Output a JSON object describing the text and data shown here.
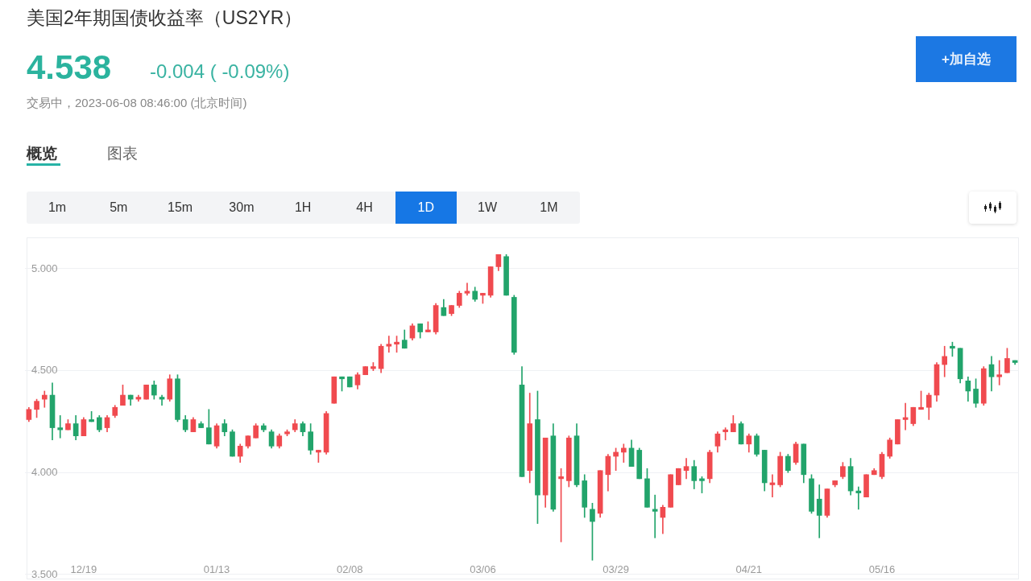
{
  "chart_data": {
    "type": "candlestick",
    "title": "美国2年期国债收益率（US2YR）",
    "subtitle": "交易中，2023-06-08 08:46:00 (北京时间)",
    "annotations": [
      "4.538",
      "-0.004 ( -0.09%)",
      "概览",
      "图表",
      "1m",
      "5m",
      "15m",
      "30m",
      "1H",
      "4H",
      "1D",
      "1W",
      "1M",
      "+加自选"
    ],
    "categories": [
      null,
      null,
      null,
      null,
      null,
      null,
      null,
      "12/19",
      null,
      null,
      null,
      null,
      null,
      null,
      null,
      null,
      null,
      null,
      null,
      null,
      null,
      null,
      null,
      null,
      "01/13",
      null,
      null,
      null,
      null,
      null,
      null,
      null,
      null,
      null,
      null,
      null,
      null,
      null,
      null,
      null,
      null,
      "02/08",
      null,
      null,
      null,
      null,
      null,
      null,
      null,
      null,
      null,
      null,
      null,
      null,
      null,
      null,
      null,
      null,
      "03/06",
      null,
      null,
      null,
      null,
      null,
      null,
      null,
      null,
      null,
      null,
      null,
      null,
      null,
      null,
      null,
      null,
      "03/29",
      null,
      null,
      null,
      null,
      null,
      null,
      null,
      null,
      null,
      null,
      null,
      null,
      null,
      null,
      null,
      null,
      "04/21",
      null,
      null,
      null,
      null,
      null,
      null,
      null,
      null,
      null,
      null,
      null,
      null,
      null,
      null,
      null,
      null,
      "05/16",
      null,
      null,
      null,
      null,
      null,
      null,
      null,
      null,
      null,
      null,
      null,
      null,
      null,
      null,
      null,
      null,
      null
    ],
    "ohlc": [
      [
        4.26,
        4.32,
        4.25,
        4.31
      ],
      [
        4.31,
        4.36,
        4.27,
        4.35
      ],
      [
        4.36,
        4.4,
        4.32,
        4.38
      ],
      [
        4.38,
        4.44,
        4.16,
        4.22
      ],
      [
        4.22,
        4.28,
        4.17,
        4.21
      ],
      [
        4.21,
        4.26,
        4.21,
        4.24
      ],
      [
        4.24,
        4.28,
        4.16,
        4.18
      ],
      [
        4.18,
        4.27,
        4.18,
        4.26
      ],
      [
        4.26,
        4.3,
        4.25,
        4.25
      ],
      [
        4.27,
        4.28,
        4.2,
        4.21
      ],
      [
        4.22,
        4.28,
        4.2,
        4.27
      ],
      [
        4.28,
        4.33,
        4.27,
        4.32
      ],
      [
        4.33,
        4.43,
        4.33,
        4.38
      ],
      [
        4.38,
        4.38,
        4.33,
        4.36
      ],
      [
        4.36,
        4.38,
        4.35,
        4.37
      ],
      [
        4.36,
        4.43,
        4.36,
        4.43
      ],
      [
        4.43,
        4.45,
        4.36,
        4.38
      ],
      [
        4.37,
        4.38,
        4.33,
        4.36
      ],
      [
        4.36,
        4.48,
        4.35,
        4.46
      ],
      [
        4.46,
        4.48,
        4.25,
        4.26
      ],
      [
        4.26,
        4.28,
        4.2,
        4.21
      ],
      [
        4.2,
        4.27,
        4.2,
        4.26
      ],
      [
        4.24,
        4.25,
        4.22,
        4.22
      ],
      [
        4.22,
        4.31,
        4.14,
        4.14
      ],
      [
        4.13,
        4.24,
        4.12,
        4.23
      ],
      [
        4.24,
        4.26,
        4.18,
        4.2
      ],
      [
        4.2,
        4.21,
        4.08,
        4.08
      ],
      [
        4.08,
        4.14,
        4.05,
        4.13
      ],
      [
        4.13,
        4.18,
        4.12,
        4.18
      ],
      [
        4.17,
        4.24,
        4.17,
        4.23
      ],
      [
        4.23,
        4.24,
        4.2,
        4.21
      ],
      [
        4.2,
        4.21,
        4.12,
        4.13
      ],
      [
        4.13,
        4.19,
        4.12,
        4.18
      ],
      [
        4.19,
        4.21,
        4.18,
        4.2
      ],
      [
        4.21,
        4.26,
        4.2,
        4.24
      ],
      [
        4.24,
        4.25,
        4.18,
        4.2
      ],
      [
        4.2,
        4.24,
        4.09,
        4.11
      ],
      [
        4.1,
        4.11,
        4.05,
        4.11
      ],
      [
        4.1,
        4.3,
        4.09,
        4.29
      ],
      [
        4.34,
        4.47,
        4.34,
        4.47
      ],
      [
        4.47,
        4.47,
        4.4,
        4.46
      ],
      [
        4.47,
        4.47,
        4.42,
        4.42
      ],
      [
        4.43,
        4.49,
        4.41,
        4.48
      ],
      [
        4.48,
        4.52,
        4.48,
        4.52
      ],
      [
        4.51,
        4.54,
        4.5,
        4.52
      ],
      [
        4.51,
        4.63,
        4.49,
        4.62
      ],
      [
        4.62,
        4.67,
        4.59,
        4.63
      ],
      [
        4.63,
        4.67,
        4.59,
        4.64
      ],
      [
        4.65,
        4.7,
        4.61,
        4.61
      ],
      [
        4.66,
        4.73,
        4.65,
        4.72
      ],
      [
        4.73,
        4.73,
        4.66,
        4.69
      ],
      [
        4.69,
        4.74,
        4.69,
        4.7
      ],
      [
        4.69,
        4.83,
        4.68,
        4.82
      ],
      [
        4.81,
        4.85,
        4.77,
        4.77
      ],
      [
        4.78,
        4.82,
        4.77,
        4.82
      ],
      [
        4.82,
        4.89,
        4.81,
        4.88
      ],
      [
        4.88,
        4.93,
        4.87,
        4.89
      ],
      [
        4.89,
        4.91,
        4.84,
        4.85
      ],
      [
        4.87,
        4.88,
        4.83,
        4.88
      ],
      [
        4.87,
        5.01,
        4.86,
        5.01
      ],
      [
        5.01,
        5.07,
        4.99,
        5.07
      ],
      [
        5.06,
        5.07,
        4.87,
        4.87
      ],
      [
        4.86,
        4.87,
        4.58,
        4.59
      ],
      [
        4.43,
        4.52,
        3.98,
        3.98
      ],
      [
        4.01,
        4.39,
        3.95,
        4.24
      ],
      [
        4.26,
        4.4,
        3.75,
        3.89
      ],
      [
        3.89,
        4.17,
        3.83,
        4.17
      ],
      [
        4.18,
        4.24,
        3.81,
        3.82
      ],
      [
        3.97,
        4.02,
        3.66,
        3.98
      ],
      [
        3.96,
        4.18,
        3.93,
        4.17
      ],
      [
        4.18,
        4.24,
        3.93,
        3.94
      ],
      [
        3.96,
        3.99,
        3.78,
        3.83
      ],
      [
        3.82,
        3.85,
        3.57,
        3.76
      ],
      [
        3.8,
        4.01,
        3.78,
        4.01
      ],
      [
        3.99,
        4.09,
        3.91,
        4.08
      ],
      [
        4.08,
        4.12,
        4.01,
        4.1
      ],
      [
        4.1,
        4.14,
        4.05,
        4.12
      ],
      [
        4.12,
        4.16,
        4.03,
        4.03
      ],
      [
        4.11,
        4.12,
        3.97,
        3.97
      ],
      [
        3.97,
        4.02,
        3.83,
        3.83
      ],
      [
        3.82,
        3.89,
        3.68,
        3.81
      ],
      [
        3.78,
        3.84,
        3.7,
        3.83
      ],
      [
        3.83,
        3.99,
        3.83,
        3.99
      ],
      [
        3.94,
        4.02,
        3.94,
        4.02
      ],
      [
        4.01,
        4.07,
        3.97,
        4.03
      ],
      [
        4.03,
        4.06,
        3.92,
        3.96
      ],
      [
        3.97,
        3.98,
        3.9,
        3.96
      ],
      [
        3.97,
        4.11,
        3.95,
        4.1
      ],
      [
        4.13,
        4.2,
        4.1,
        4.19
      ],
      [
        4.2,
        4.22,
        4.16,
        4.21
      ],
      [
        4.2,
        4.28,
        4.2,
        4.24
      ],
      [
        4.24,
        4.25,
        4.14,
        4.14
      ],
      [
        4.14,
        4.19,
        4.1,
        4.18
      ],
      [
        4.18,
        4.19,
        4.08,
        4.09
      ],
      [
        4.11,
        4.11,
        3.91,
        3.95
      ],
      [
        3.94,
        3.99,
        3.88,
        3.95
      ],
      [
        3.94,
        4.1,
        3.93,
        4.08
      ],
      [
        4.08,
        4.09,
        4.0,
        4.01
      ],
      [
        4.05,
        4.15,
        4.04,
        4.14
      ],
      [
        4.14,
        4.14,
        3.95,
        3.99
      ],
      [
        3.97,
        3.99,
        3.8,
        3.81
      ],
      [
        3.87,
        3.94,
        3.68,
        3.79
      ],
      [
        3.79,
        3.92,
        3.78,
        3.92
      ],
      [
        3.94,
        3.96,
        3.93,
        3.96
      ],
      [
        3.98,
        4.05,
        3.97,
        4.03
      ],
      [
        4.03,
        4.07,
        3.89,
        3.91
      ],
      [
        3.91,
        3.93,
        3.82,
        3.9
      ],
      [
        3.88,
        3.99,
        3.88,
        3.99
      ],
      [
        3.99,
        4.02,
        3.99,
        4.01
      ],
      [
        3.98,
        4.1,
        3.97,
        4.09
      ],
      [
        4.08,
        4.17,
        4.07,
        4.16
      ],
      [
        4.14,
        4.26,
        4.14,
        4.26
      ],
      [
        4.26,
        4.34,
        4.21,
        4.27
      ],
      [
        4.24,
        4.32,
        4.23,
        4.32
      ],
      [
        4.31,
        4.4,
        4.31,
        4.32
      ],
      [
        4.32,
        4.39,
        4.26,
        4.38
      ],
      [
        4.38,
        4.54,
        4.35,
        4.53
      ],
      [
        4.53,
        4.62,
        4.47,
        4.57
      ],
      [
        4.62,
        4.64,
        4.57,
        4.61
      ],
      [
        4.61,
        4.61,
        4.44,
        4.46
      ],
      [
        4.45,
        4.47,
        4.35,
        4.4
      ],
      [
        4.41,
        4.46,
        4.32,
        4.34
      ],
      [
        4.34,
        4.52,
        4.33,
        4.51
      ],
      [
        4.53,
        4.57,
        4.4,
        4.47
      ],
      [
        4.47,
        4.55,
        4.43,
        4.48
      ],
      [
        4.49,
        4.61,
        4.49,
        4.56
      ],
      [
        4.55,
        4.55,
        4.53,
        4.54
      ]
    ],
    "colors": [
      "#f04a4f",
      "#f04a4f",
      "#f04a4f",
      "#22a46b",
      "#22a46b",
      "#f04a4f",
      "#22a46b",
      "#f04a4f",
      "#22a46b",
      "#22a46b",
      "#f04a4f",
      "#f04a4f",
      "#f04a4f",
      "#22a46b",
      "#f04a4f",
      "#f04a4f",
      "#22a46b",
      "#22a46b",
      "#f04a4f",
      "#22a46b",
      "#22a46b",
      "#f04a4f",
      "#22a46b",
      "#22a46b",
      "#f04a4f",
      "#22a46b",
      "#22a46b",
      "#f04a4f",
      "#f04a4f",
      "#f04a4f",
      "#22a46b",
      "#22a46b",
      "#f04a4f",
      "#f04a4f",
      "#f04a4f",
      "#22a46b",
      "#22a46b",
      "#f04a4f",
      "#f04a4f",
      "#f04a4f",
      "#22a46b",
      "#22a46b",
      "#f04a4f",
      "#f04a4f",
      "#f04a4f",
      "#f04a4f",
      "#f04a4f",
      "#f04a4f",
      "#22a46b",
      "#f04a4f",
      "#22a46b",
      "#f04a4f",
      "#f04a4f",
      "#22a46b",
      "#f04a4f",
      "#f04a4f",
      "#f04a4f",
      "#22a46b",
      "#f04a4f",
      "#f04a4f",
      "#f04a4f",
      "#22a46b",
      "#22a46b",
      "#22a46b",
      "#f04a4f",
      "#22a46b",
      "#f04a4f",
      "#22a46b",
      "#f04a4f",
      "#f04a4f",
      "#22a46b",
      "#22a46b",
      "#22a46b",
      "#f04a4f",
      "#f04a4f",
      "#f04a4f",
      "#f04a4f",
      "#22a46b",
      "#22a46b",
      "#22a46b",
      "#22a46b",
      "#f04a4f",
      "#f04a4f",
      "#f04a4f",
      "#f04a4f",
      "#22a46b",
      "#22a46b",
      "#f04a4f",
      "#f04a4f",
      "#f04a4f",
      "#f04a4f",
      "#22a46b",
      "#f04a4f",
      "#22a46b",
      "#22a46b",
      "#f04a4f",
      "#f04a4f",
      "#22a46b",
      "#f04a4f",
      "#22a46b",
      "#22a46b",
      "#22a46b",
      "#f04a4f",
      "#f04a4f",
      "#f04a4f",
      "#22a46b",
      "#22a46b",
      "#f04a4f",
      "#f04a4f",
      "#f04a4f",
      "#f04a4f",
      "#f04a4f",
      "#f04a4f",
      "#f04a4f",
      "#f04a4f",
      "#f04a4f",
      "#f04a4f",
      "#f04a4f",
      "#22a46b",
      "#22a46b",
      "#22a46b",
      "#22a46b",
      "#f04a4f",
      "#22a46b",
      "#f04a4f",
      "#f04a4f",
      "#22a46b"
    ],
    "ylim": [
      3.48,
      5.15
    ],
    "yticks": [
      {
        "value": 3.5,
        "label": "3.500"
      },
      {
        "value": 4,
        "label": "4.000"
      },
      {
        "value": 4.5,
        "label": "4.500"
      },
      {
        "value": 5,
        "label": "5.000"
      }
    ],
    "grid": "y"
  }
}
